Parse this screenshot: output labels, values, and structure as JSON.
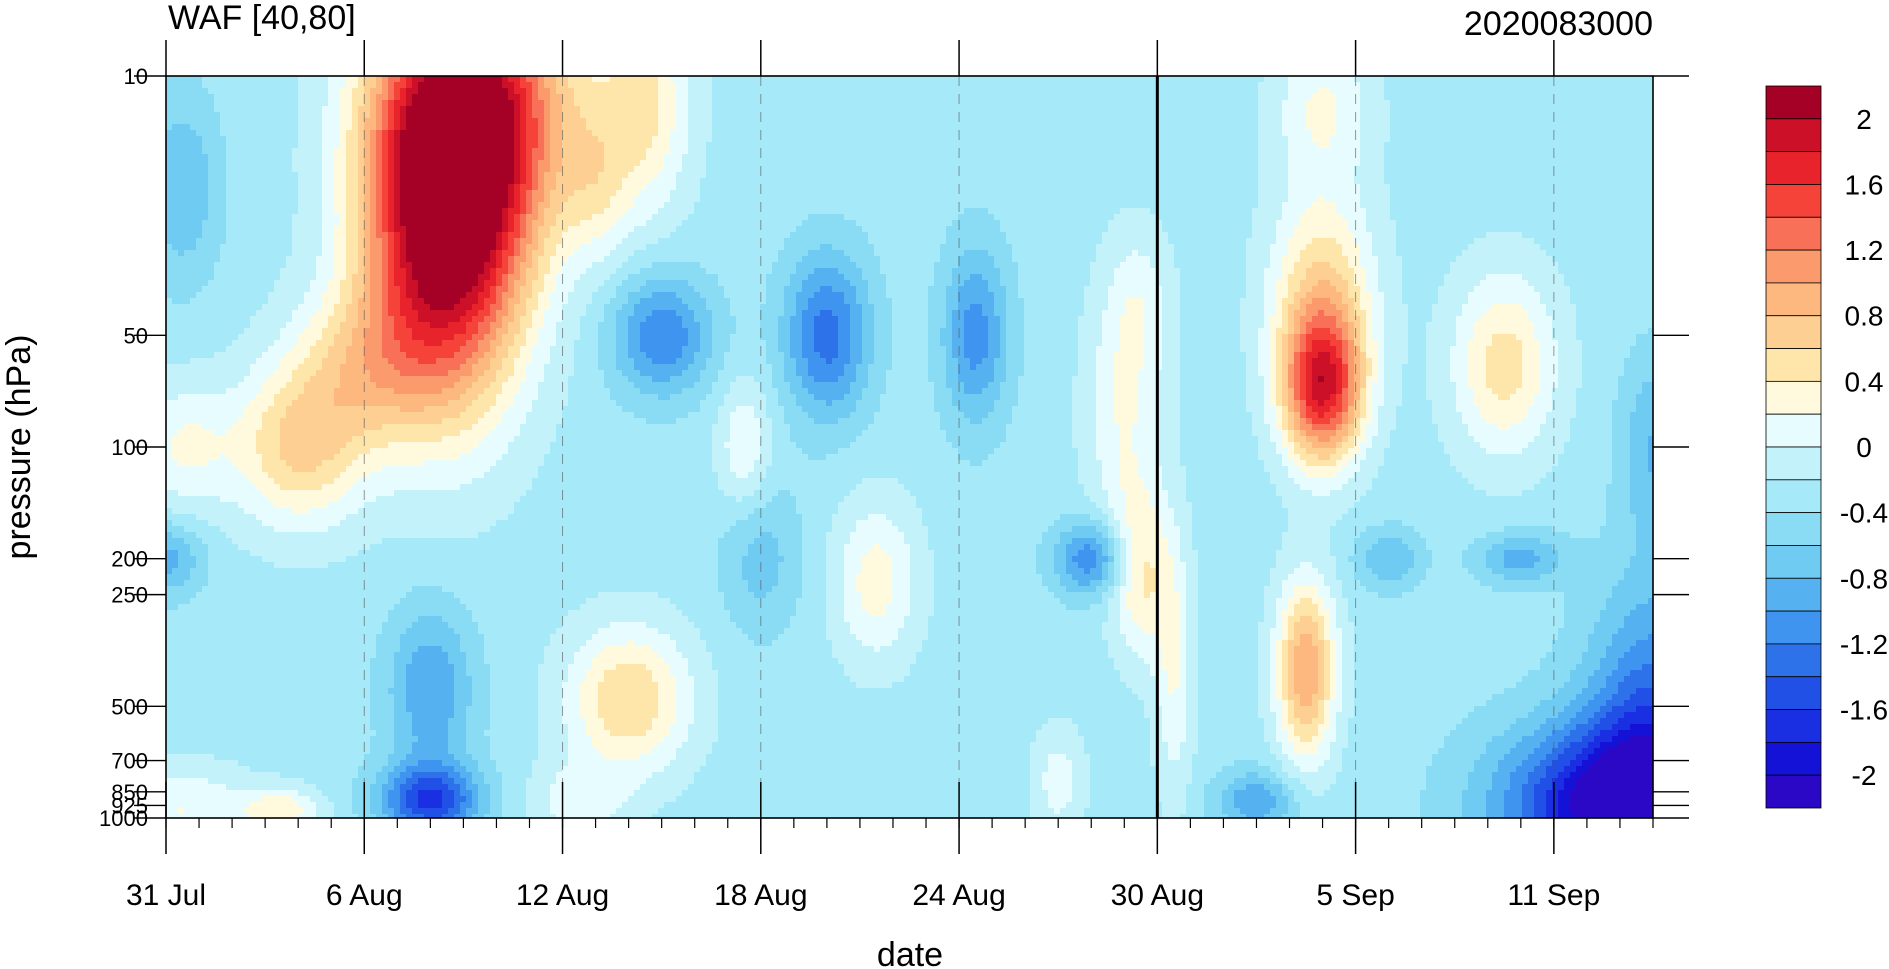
{
  "chart_data": {
    "type": "heatmap",
    "title_left": "WAF [40,80]",
    "title_right": "2020083000",
    "xlabel": "date",
    "ylabel": "pressure (hPa)",
    "y_scale": "log",
    "y_reversed": true,
    "xlim": [
      "2020-07-31",
      "2020-09-14"
    ],
    "ylim": [
      1000,
      10
    ],
    "x_ticks": [
      {
        "label": "31 Jul",
        "date": "2020-07-31"
      },
      {
        "label": "6 Aug",
        "date": "2020-08-06"
      },
      {
        "label": "12 Aug",
        "date": "2020-08-12"
      },
      {
        "label": "18 Aug",
        "date": "2020-08-18"
      },
      {
        "label": "24 Aug",
        "date": "2020-08-24"
      },
      {
        "label": "30 Aug",
        "date": "2020-08-30"
      },
      {
        "label": "5 Sep",
        "date": "2020-09-05"
      },
      {
        "label": "11 Sep",
        "date": "2020-09-11"
      }
    ],
    "y_ticks": [
      {
        "label": "10",
        "value": 10
      },
      {
        "label": "50",
        "value": 50
      },
      {
        "label": "100",
        "value": 100
      },
      {
        "label": "200",
        "value": 200
      },
      {
        "label": "250",
        "value": 250
      },
      {
        "label": "500",
        "value": 500
      },
      {
        "label": "700",
        "value": 700
      },
      {
        "label": "850",
        "value": 850
      },
      {
        "label": "925",
        "value": 925
      },
      {
        "label": "1000",
        "value": 1000
      }
    ],
    "reference_line": {
      "date": "2020-08-30"
    },
    "colorbar": {
      "levels": [
        2.2,
        2.0,
        1.8,
        1.6,
        1.4,
        1.2,
        1.0,
        0.8,
        0.6,
        0.4,
        0.2,
        0.0,
        -0.2,
        -0.4,
        -0.6,
        -0.8,
        -1.0,
        -1.2,
        -1.4,
        -1.6,
        -1.8,
        -2.0,
        -2.2
      ],
      "colors": [
        "#a50026",
        "#cc1028",
        "#e8232c",
        "#f5433a",
        "#f87057",
        "#fb9a6c",
        "#fdb87f",
        "#fdcf92",
        "#fee6aa",
        "#fff9dd",
        "#e6fcff",
        "#c3f2fb",
        "#a6eaf9",
        "#8adcf5",
        "#6fcbf1",
        "#56b1f1",
        "#3e94ef",
        "#2e72ea",
        "#2150e6",
        "#1a2fe2",
        "#1512d8",
        "#2a08c6"
      ],
      "tick_labels": [
        {
          "label": "2",
          "value": 2.0
        },
        {
          "label": "1.6",
          "value": 1.6
        },
        {
          "label": "1.2",
          "value": 1.2
        },
        {
          "label": "0.8",
          "value": 0.8
        },
        {
          "label": "0.4",
          "value": 0.4
        },
        {
          "label": "0",
          "value": 0.0
        },
        {
          "label": "-0.4",
          "value": -0.4
        },
        {
          "label": "-0.8",
          "value": -0.8
        },
        {
          "label": "-1.2",
          "value": -1.2
        },
        {
          "label": "-1.6",
          "value": -1.6
        },
        {
          "label": "-2",
          "value": -2.0
        }
      ]
    },
    "background_value": -0.3,
    "features": [
      {
        "date": "2020-08-08.5",
        "p": 25,
        "amp": 2.6,
        "wx": 2.4,
        "wy": 0.48
      },
      {
        "date": "2020-08-09.5",
        "p": 12,
        "amp": 1.6,
        "wx": 3.0,
        "wy": 0.35
      },
      {
        "date": "2020-08-06",
        "p": 60,
        "amp": 0.7,
        "wx": 2.2,
        "wy": 0.22
      },
      {
        "date": "2020-08-04",
        "p": 100,
        "amp": 0.9,
        "wx": 2.0,
        "wy": 0.22
      },
      {
        "date": "2020-07-31.5",
        "p": 100,
        "amp": 0.5,
        "wx": 1.5,
        "wy": 0.18
      },
      {
        "date": "2020-08-14.5",
        "p": 12,
        "amp": 0.7,
        "wx": 1.4,
        "wy": 0.3
      },
      {
        "date": "2020-08-13",
        "p": 20,
        "amp": 0.4,
        "wx": 1.0,
        "wy": 0.2
      },
      {
        "date": "2020-08-15",
        "p": 50,
        "amp": -0.9,
        "wx": 1.5,
        "wy": 0.16
      },
      {
        "date": "2020-08-20",
        "p": 50,
        "amp": -1.0,
        "wx": 1.3,
        "wy": 0.22
      },
      {
        "date": "2020-08-24.5",
        "p": 50,
        "amp": -0.8,
        "wx": 1.0,
        "wy": 0.24
      },
      {
        "date": "2020-08-18",
        "p": 200,
        "amp": -0.4,
        "wx": 1.2,
        "wy": 0.2
      },
      {
        "date": "2020-08-17.5",
        "p": 100,
        "amp": 0.5,
        "wx": 0.8,
        "wy": 0.18
      },
      {
        "date": "2020-08-29",
        "p": 80,
        "amp": 0.5,
        "wx": 1.2,
        "wy": 0.35
      },
      {
        "date": "2020-08-29.5",
        "p": 40,
        "amp": 0.3,
        "wx": 1.0,
        "wy": 0.2
      },
      {
        "date": "2020-08-21.5",
        "p": 230,
        "amp": 0.6,
        "wx": 1.3,
        "wy": 0.22
      },
      {
        "date": "2020-08-14",
        "p": 480,
        "amp": 0.9,
        "wx": 1.9,
        "wy": 0.2
      },
      {
        "date": "2020-08-28",
        "p": 200,
        "amp": -0.9,
        "wx": 1.1,
        "wy": 0.1
      },
      {
        "date": "2020-07-31",
        "p": 200,
        "amp": -0.6,
        "wx": 1.1,
        "wy": 0.1
      },
      {
        "date": "2020-08-08",
        "p": 900,
        "amp": -1.3,
        "wx": 1.5,
        "wy": 0.1
      },
      {
        "date": "2020-08-08",
        "p": 450,
        "amp": -0.7,
        "wx": 1.3,
        "wy": 0.22
      },
      {
        "date": "2020-07-31.5",
        "p": 950,
        "amp": 0.5,
        "wx": 2.2,
        "wy": 0.12
      },
      {
        "date": "2020-08-03.5",
        "p": 950,
        "amp": 0.6,
        "wx": 1.2,
        "wy": 0.06
      },
      {
        "date": "2020-08-29.5",
        "p": 220,
        "amp": 0.7,
        "wx": 0.9,
        "wy": 0.22
      },
      {
        "date": "2020-08-30.5",
        "p": 400,
        "amp": 0.5,
        "wx": 0.6,
        "wy": 0.35
      },
      {
        "date": "2020-09-04",
        "p": 70,
        "amp": 1.8,
        "wx": 1.2,
        "wy": 0.2
      },
      {
        "date": "2020-09-04",
        "p": 40,
        "amp": 0.9,
        "wx": 1.6,
        "wy": 0.3
      },
      {
        "date": "2020-09-04",
        "p": 12,
        "amp": 0.5,
        "wx": 1.5,
        "wy": 0.2
      },
      {
        "date": "2020-09-03.5",
        "p": 400,
        "amp": 1.3,
        "wx": 0.9,
        "wy": 0.24
      },
      {
        "date": "2020-09-09.5",
        "p": 60,
        "amp": 0.8,
        "wx": 1.6,
        "wy": 0.25
      },
      {
        "date": "2020-09-13",
        "p": 930,
        "amp": -1.9,
        "wx": 3.5,
        "wy": 0.22
      },
      {
        "date": "2020-09-14",
        "p": 500,
        "amp": -0.9,
        "wx": 2.0,
        "wy": 0.35
      },
      {
        "date": "2020-09-14",
        "p": 100,
        "amp": -0.5,
        "wx": 1.0,
        "wy": 0.25
      },
      {
        "date": "2020-09-10",
        "p": 200,
        "amp": -0.6,
        "wx": 1.3,
        "wy": 0.07
      },
      {
        "date": "2020-09-06",
        "p": 200,
        "amp": -0.5,
        "wx": 1.0,
        "wy": 0.08
      },
      {
        "date": "2020-09-02",
        "p": 900,
        "amp": -0.7,
        "wx": 1.2,
        "wy": 0.08
      },
      {
        "date": "2020-07-31.5",
        "p": 20,
        "amp": -0.5,
        "wx": 1.1,
        "wy": 0.25
      },
      {
        "date": "2020-08-27",
        "p": 800,
        "amp": 0.4,
        "wx": 0.8,
        "wy": 0.15
      },
      {
        "date": "2020-08-12.5",
        "p": 900,
        "amp": 0.4,
        "wx": 1.5,
        "wy": 0.1
      }
    ]
  }
}
